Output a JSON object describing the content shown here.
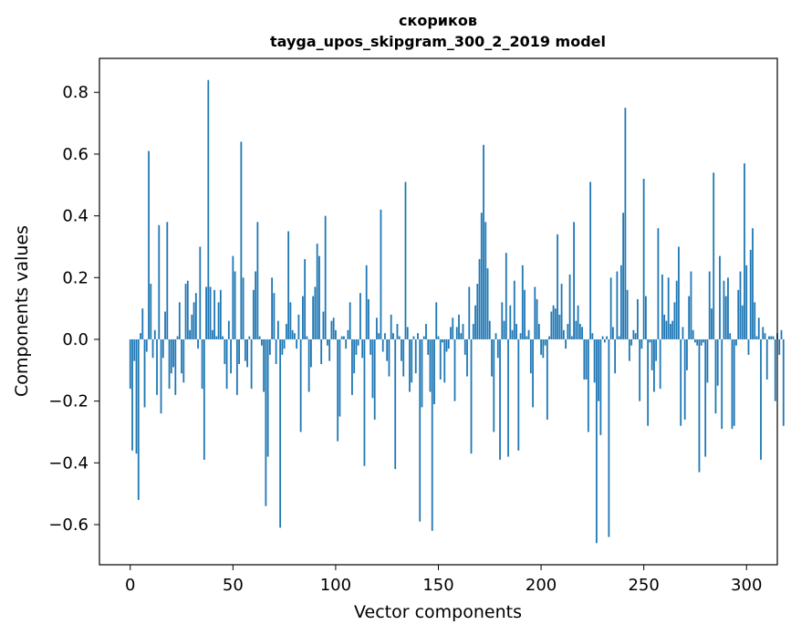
{
  "chart_data": {
    "type": "bar",
    "title_lines": [
      "скориков",
      "tayga_upos_skipgram_300_2_2019 model"
    ],
    "xlabel": "Vector components",
    "ylabel": "Components values",
    "xlim": [
      -15,
      315
    ],
    "ylim": [
      -0.73,
      0.91
    ],
    "xticks": [
      0,
      50,
      100,
      150,
      200,
      250,
      300
    ],
    "xtick_labels": [
      "0",
      "50",
      "100",
      "150",
      "200",
      "250",
      "300"
    ],
    "yticks": [
      -0.6,
      -0.4,
      -0.2,
      0.0,
      0.2,
      0.4,
      0.6,
      0.8
    ],
    "ytick_labels": [
      "−0.6",
      "−0.4",
      "−0.2",
      "0.0",
      "0.2",
      "0.4",
      "0.6",
      "0.8"
    ],
    "grid": false,
    "bar_color": "#1f77b4",
    "values": [
      -0.16,
      -0.36,
      -0.07,
      -0.37,
      -0.52,
      0.02,
      0.1,
      -0.22,
      -0.04,
      0.61,
      0.18,
      -0.06,
      0.03,
      -0.18,
      0.37,
      -0.24,
      -0.06,
      0.09,
      0.38,
      -0.16,
      -0.11,
      -0.09,
      -0.18,
      0.01,
      0.12,
      -0.11,
      -0.14,
      0.18,
      0.19,
      0.03,
      0.08,
      0.12,
      0.15,
      -0.03,
      0.3,
      -0.16,
      -0.39,
      0.17,
      0.84,
      0.17,
      0.03,
      0.16,
      0.01,
      0.12,
      0.16,
      0.01,
      -0.08,
      -0.16,
      0.06,
      -0.11,
      0.27,
      0.22,
      -0.18,
      -0.08,
      0.64,
      0.2,
      -0.07,
      -0.09,
      0.01,
      -0.16,
      0.16,
      0.22,
      0.38,
      0.01,
      -0.02,
      -0.17,
      -0.54,
      -0.38,
      -0.05,
      0.2,
      0.15,
      -0.08,
      0.06,
      -0.61,
      -0.05,
      -0.03,
      0.05,
      0.35,
      0.12,
      0.03,
      0.02,
      -0.03,
      0.08,
      -0.3,
      0.14,
      0.26,
      0.01,
      -0.17,
      -0.09,
      0.14,
      0.17,
      0.31,
      0.27,
      -0.08,
      0.09,
      0.4,
      -0.02,
      -0.07,
      0.06,
      0.07,
      0.03,
      -0.33,
      -0.25,
      0.01,
      0.01,
      -0.03,
      0.03,
      0.12,
      -0.18,
      -0.11,
      -0.05,
      -0.02,
      0.15,
      -0.06,
      -0.41,
      0.24,
      0.13,
      -0.05,
      -0.19,
      -0.26,
      0.07,
      0.02,
      0.42,
      -0.04,
      0.02,
      -0.07,
      -0.12,
      0.08,
      0.02,
      -0.42,
      0.05,
      0.01,
      -0.07,
      -0.12,
      0.51,
      0.04,
      -0.17,
      -0.14,
      0.01,
      -0.11,
      0.02,
      -0.59,
      -0.22,
      0.01,
      0.05,
      -0.05,
      -0.17,
      -0.62,
      -0.21,
      0.12,
      0.01,
      -0.13,
      -0.01,
      -0.14,
      -0.04,
      -0.03,
      0.04,
      0.07,
      -0.2,
      0.04,
      0.08,
      0.02,
      0.05,
      -0.05,
      -0.12,
      0.17,
      -0.37,
      0.05,
      0.11,
      0.18,
      0.26,
      0.41,
      0.63,
      0.38,
      0.23,
      0.06,
      -0.12,
      -0.3,
      0.02,
      -0.06,
      -0.39,
      0.12,
      0.06,
      0.28,
      -0.38,
      0.11,
      0.03,
      0.19,
      0.05,
      -0.36,
      0.02,
      0.24,
      0.16,
      0.01,
      0.03,
      -0.11,
      -0.22,
      0.17,
      0.13,
      0.05,
      -0.05,
      -0.06,
      -0.02,
      -0.26,
      0.01,
      0.09,
      0.11,
      0.1,
      0.34,
      0.08,
      0.18,
      0.03,
      -0.03,
      0.05,
      0.21,
      0.01,
      0.38,
      0.06,
      0.11,
      0.05,
      0.04,
      -0.13,
      -0.13,
      -0.3,
      0.51,
      0.02,
      -0.14,
      -0.66,
      -0.2,
      -0.31,
      0.01,
      -0.01,
      0.01,
      -0.64,
      0.2,
      0.04,
      -0.11,
      0.22,
      0.01,
      0.24,
      0.41,
      0.75,
      0.16,
      -0.07,
      -0.02,
      0.03,
      0.02,
      0.13,
      -0.2,
      -0.03,
      0.52,
      0.14,
      -0.28,
      -0.01,
      -0.1,
      -0.17,
      -0.07,
      0.36,
      -0.16,
      0.21,
      0.08,
      0.06,
      0.2,
      0.05,
      0.06,
      0.12,
      0.19,
      0.3,
      -0.28,
      0.04,
      -0.26,
      -0.1,
      0.14,
      0.22,
      0.03,
      -0.01,
      -0.02,
      -0.43,
      -0.02,
      -0.01,
      -0.38,
      -0.14,
      0.22,
      0.1,
      0.54,
      -0.24,
      -0.15,
      0.27,
      -0.29,
      0.19,
      0.14,
      0.2,
      0.02,
      -0.29,
      -0.28,
      -0.02,
      0.16,
      0.22,
      0.11,
      0.57,
      0.24,
      -0.05,
      0.29,
      0.36,
      0.12,
      0.01,
      0.07,
      -0.39,
      0.04,
      0.02,
      -0.13,
      0.01,
      0.01,
      0.01,
      -0.2,
      0.02,
      -0.05,
      0.03,
      -0.28
    ]
  }
}
